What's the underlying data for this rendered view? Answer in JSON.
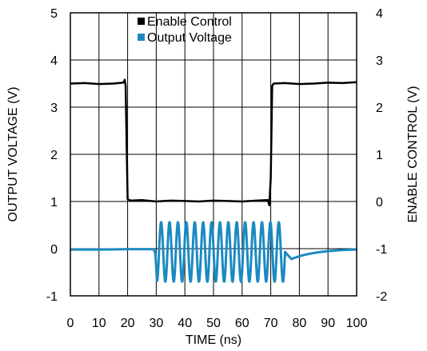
{
  "chart_data": {
    "type": "line",
    "xlabel": "TIME (ns)",
    "ylabel_left": "OUTPUT VOLTAGE (V)",
    "ylabel_right": "ENABLE CONTROL (V)",
    "x_ticks": [
      0,
      10,
      20,
      30,
      40,
      50,
      60,
      70,
      80,
      90,
      100
    ],
    "y_left_ticks": [
      -1,
      0,
      1,
      2,
      3,
      4,
      5
    ],
    "y_right_ticks": [
      -2,
      -1,
      0,
      1,
      2,
      3,
      4
    ],
    "xlim": [
      0,
      100
    ],
    "ylim_left": [
      -1,
      5
    ],
    "ylim_right": [
      -2,
      4
    ],
    "grid": true,
    "legend_position": "top-center",
    "series": [
      {
        "name": "Enable Control",
        "color": "#000000",
        "axis": "right",
        "x": [
          0,
          5,
          10,
          15,
          18.5,
          19,
          19.3,
          20,
          21,
          25,
          30,
          35,
          40,
          45,
          50,
          55,
          60,
          65,
          69,
          69.5,
          70,
          70.5,
          71,
          75,
          80,
          85,
          90,
          95,
          100
        ],
        "y": [
          2.5,
          2.51,
          2.49,
          2.5,
          2.52,
          2.58,
          2.45,
          0.05,
          0.02,
          0.03,
          0.0,
          0.02,
          0.01,
          0.0,
          0.02,
          0.01,
          0.0,
          0.02,
          0.03,
          -0.08,
          0.5,
          2.45,
          2.5,
          2.51,
          2.49,
          2.5,
          2.52,
          2.51,
          2.53
        ]
      },
      {
        "name": "Output Voltage",
        "color": "#1b8ac1",
        "axis": "left",
        "burst": {
          "start": 29.5,
          "end": 75,
          "center": -0.07,
          "amplitude": 0.63,
          "cycles": 15.5,
          "undershoot_min": -0.22,
          "recovery_end": 100
        },
        "x": [
          0,
          10,
          20,
          29
        ],
        "y": [
          -0.02,
          -0.02,
          -0.01,
          -0.01
        ]
      }
    ]
  }
}
